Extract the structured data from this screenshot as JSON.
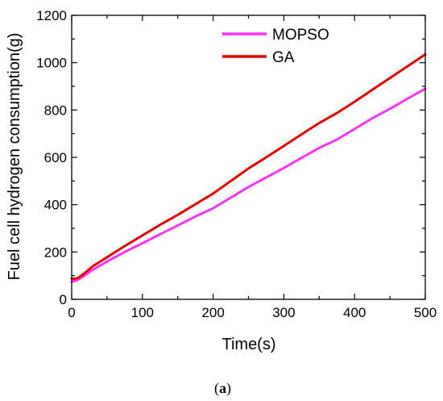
{
  "chart_data": {
    "type": "line",
    "xlabel": "Time(s)",
    "ylabel": "Fuel cell hydrogen consumption(g)",
    "xlim": [
      0,
      500
    ],
    "ylim": [
      0,
      1200
    ],
    "xticks": [
      0,
      100,
      200,
      300,
      400,
      500
    ],
    "yticks": [
      0,
      200,
      400,
      600,
      800,
      1000,
      1200
    ],
    "xtick_labels": [
      "0",
      "100",
      "200",
      "300",
      "400",
      "500"
    ],
    "ytick_labels": [
      "0",
      "200",
      "400",
      "600",
      "800",
      "1000",
      "1200"
    ],
    "grid": false,
    "legend_position": "top-center",
    "series": [
      {
        "name": "MOPSO",
        "color": "#ff33ff",
        "x": [
          0,
          5,
          10,
          20,
          30,
          50,
          75,
          100,
          125,
          150,
          175,
          200,
          225,
          250,
          275,
          300,
          325,
          350,
          375,
          400,
          425,
          450,
          475,
          500
        ],
        "y": [
          75,
          78,
          85,
          105,
          125,
          160,
          200,
          237,
          275,
          312,
          350,
          385,
          430,
          475,
          515,
          555,
          598,
          640,
          675,
          720,
          765,
          805,
          848,
          890
        ]
      },
      {
        "name": "GA",
        "color": "#e60000",
        "x": [
          0,
          5,
          10,
          20,
          30,
          50,
          75,
          100,
          125,
          150,
          175,
          200,
          225,
          250,
          275,
          300,
          325,
          350,
          375,
          400,
          425,
          450,
          475,
          500
        ],
        "y": [
          88,
          87,
          92,
          115,
          140,
          178,
          225,
          270,
          315,
          357,
          402,
          447,
          500,
          553,
          600,
          648,
          697,
          745,
          787,
          835,
          885,
          935,
          985,
          1035
        ]
      }
    ]
  },
  "caption": {
    "open": "(",
    "letter": "a",
    "close": ")"
  }
}
